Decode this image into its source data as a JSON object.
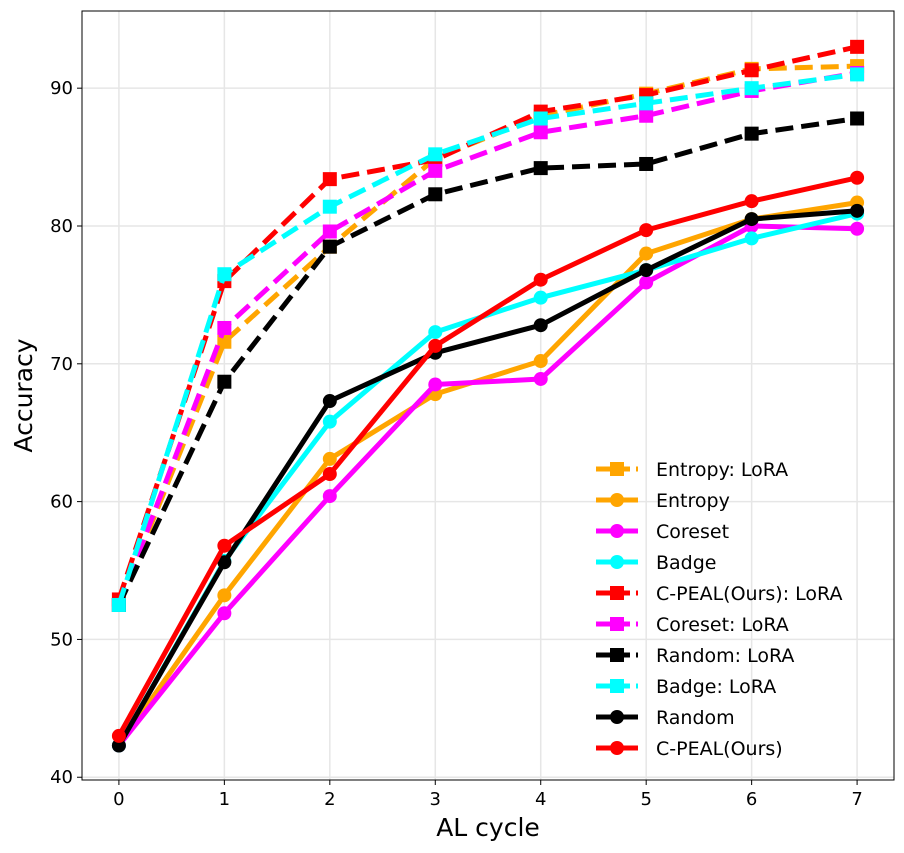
{
  "chart_data": {
    "type": "line",
    "title": "",
    "xlabel": "AL cycle",
    "ylabel": "Accuracy",
    "x": [
      0,
      1,
      2,
      3,
      4,
      5,
      6,
      7
    ],
    "xlim": [
      -0.35,
      7.35
    ],
    "ylim": [
      39.8,
      95.6
    ],
    "xticks": [
      0,
      1,
      2,
      3,
      4,
      5,
      6,
      7
    ],
    "yticks": [
      40,
      50,
      60,
      70,
      80,
      90
    ],
    "grid": true,
    "legend_position": "lower-right",
    "series": [
      {
        "name": "Entropy: LoRA",
        "color": "#FFA500",
        "dashed": true,
        "marker": "square",
        "values": [
          52.5,
          71.6,
          78.5,
          84.9,
          88.0,
          89.6,
          91.4,
          91.6
        ]
      },
      {
        "name": "Entropy",
        "color": "#FFA500",
        "dashed": false,
        "marker": "circle",
        "values": [
          42.3,
          53.2,
          63.1,
          67.8,
          70.2,
          78.0,
          80.5,
          81.7
        ]
      },
      {
        "name": "Coreset",
        "color": "#FF00FF",
        "dashed": false,
        "marker": "circle",
        "values": [
          42.3,
          51.9,
          60.4,
          68.5,
          68.9,
          75.9,
          80.0,
          79.8
        ]
      },
      {
        "name": "Badge",
        "color": "#00FFFF",
        "dashed": false,
        "marker": "circle",
        "values": [
          42.3,
          55.7,
          65.8,
          72.3,
          74.8,
          76.8,
          79.1,
          80.9
        ]
      },
      {
        "name": "C-PEAL(Ours): LoRA",
        "color": "#FF0000",
        "dashed": true,
        "marker": "square",
        "values": [
          52.9,
          76.0,
          83.4,
          84.8,
          88.3,
          89.5,
          91.3,
          93.0
        ]
      },
      {
        "name": "Coreset: LoRA",
        "color": "#FF00FF",
        "dashed": true,
        "marker": "square",
        "values": [
          52.5,
          72.6,
          79.6,
          84.0,
          86.8,
          88.0,
          89.8,
          91.1
        ]
      },
      {
        "name": "Random: LoRA",
        "color": "#000000",
        "dashed": true,
        "marker": "square",
        "values": [
          52.5,
          68.7,
          78.5,
          82.3,
          84.2,
          84.5,
          86.7,
          87.8
        ]
      },
      {
        "name": "Badge: LoRA",
        "color": "#00FFFF",
        "dashed": true,
        "marker": "square",
        "values": [
          52.5,
          76.5,
          81.4,
          85.2,
          87.8,
          88.9,
          90.0,
          91.0
        ]
      },
      {
        "name": "Random",
        "color": "#000000",
        "dashed": false,
        "marker": "circle",
        "values": [
          42.3,
          55.6,
          67.3,
          70.8,
          72.8,
          76.8,
          80.5,
          81.1
        ]
      },
      {
        "name": "C-PEAL(Ours)",
        "color": "#FF0000",
        "dashed": false,
        "marker": "circle",
        "values": [
          43.0,
          56.8,
          62.0,
          71.3,
          76.1,
          79.7,
          81.8,
          83.5
        ]
      }
    ]
  }
}
